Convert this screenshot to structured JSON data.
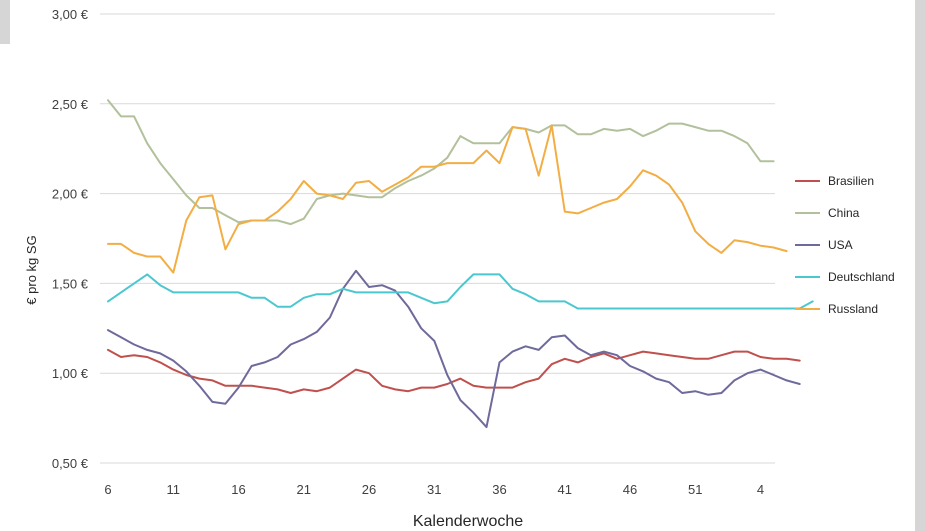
{
  "chart_data": {
    "type": "line",
    "title": "",
    "xlabel": "Kalenderwoche",
    "ylabel": "€ pro kg SG",
    "ylim": [
      0.5,
      3.0
    ],
    "yticks": [
      "0,50 €",
      "1,00 €",
      "1,50 €",
      "2,00 €",
      "2,50 €",
      "3,00 €"
    ],
    "xtick_labels": [
      "6",
      "11",
      "16",
      "21",
      "26",
      "31",
      "36",
      "41",
      "46",
      "51",
      "4"
    ],
    "grid": "horizontal",
    "legend_position": "right",
    "series": [
      {
        "name": "Brasilien",
        "color": "#c0504d",
        "values": [
          1.13,
          1.09,
          1.1,
          1.09,
          1.06,
          1.02,
          0.99,
          0.97,
          0.96,
          0.93,
          0.93,
          0.93,
          0.92,
          0.91,
          0.89,
          0.91,
          0.9,
          0.92,
          0.97,
          1.02,
          1.0,
          0.93,
          0.91,
          0.9,
          0.92,
          0.92,
          0.94,
          0.97,
          0.93,
          0.92,
          0.92,
          0.92,
          0.95,
          0.97,
          1.05,
          1.08,
          1.06,
          1.09,
          1.11,
          1.08,
          1.1,
          1.12,
          1.11,
          1.1,
          1.09,
          1.08,
          1.08,
          1.1,
          1.12,
          1.12,
          1.09,
          1.08,
          1.08,
          1.07
        ]
      },
      {
        "name": "China",
        "color": "#b2c19b",
        "values": [
          2.52,
          2.43,
          2.43,
          2.28,
          2.17,
          2.08,
          1.99,
          1.92,
          1.92,
          1.88,
          1.84,
          1.85,
          1.85,
          1.85,
          1.83,
          1.86,
          1.97,
          1.99,
          2.0,
          1.99,
          1.98,
          1.98,
          2.03,
          2.07,
          2.1,
          2.14,
          2.2,
          2.32,
          2.28,
          2.28,
          2.28,
          2.37,
          2.36,
          2.34,
          2.38,
          2.38,
          2.33,
          2.33,
          2.36,
          2.35,
          2.36,
          2.32,
          2.35,
          2.39,
          2.39,
          2.37,
          2.35,
          2.35,
          2.32,
          2.28,
          2.18,
          2.18
        ]
      },
      {
        "name": "USA",
        "color": "#6f6a9c",
        "values": [
          1.24,
          1.2,
          1.16,
          1.13,
          1.11,
          1.07,
          1.01,
          0.93,
          0.84,
          0.83,
          0.92,
          1.04,
          1.06,
          1.09,
          1.16,
          1.19,
          1.23,
          1.31,
          1.47,
          1.57,
          1.48,
          1.49,
          1.46,
          1.37,
          1.25,
          1.18,
          0.99,
          0.85,
          0.78,
          0.7,
          1.06,
          1.12,
          1.15,
          1.13,
          1.2,
          1.21,
          1.14,
          1.1,
          1.12,
          1.1,
          1.04,
          1.01,
          0.97,
          0.95,
          0.89,
          0.9,
          0.88,
          0.89,
          0.96,
          1.0,
          1.02,
          0.99,
          0.96,
          0.94
        ]
      },
      {
        "name": "Deutschland",
        "color": "#4bc8cf",
        "values": [
          1.4,
          1.45,
          1.5,
          1.55,
          1.49,
          1.45,
          1.45,
          1.45,
          1.45,
          1.45,
          1.45,
          1.42,
          1.42,
          1.37,
          1.37,
          1.42,
          1.44,
          1.44,
          1.47,
          1.45,
          1.45,
          1.45,
          1.45,
          1.45,
          1.42,
          1.39,
          1.4,
          1.48,
          1.55,
          1.55,
          1.55,
          1.47,
          1.44,
          1.4,
          1.4,
          1.4,
          1.36,
          1.36,
          1.36,
          1.36,
          1.36,
          1.36,
          1.36,
          1.36,
          1.36,
          1.36,
          1.36,
          1.36,
          1.36,
          1.36,
          1.36,
          1.36,
          1.36,
          1.36,
          1.4
        ]
      },
      {
        "name": "Russland",
        "color": "#f2ae45",
        "values": [
          1.72,
          1.72,
          1.67,
          1.65,
          1.65,
          1.56,
          1.85,
          1.98,
          1.99,
          1.69,
          1.83,
          1.85,
          1.85,
          1.9,
          1.97,
          2.07,
          2.0,
          1.99,
          1.97,
          2.06,
          2.07,
          2.01,
          2.05,
          2.09,
          2.15,
          2.15,
          2.17,
          2.17,
          2.17,
          2.24,
          2.17,
          2.37,
          2.36,
          2.1,
          2.38,
          1.9,
          1.89,
          1.92,
          1.95,
          1.97,
          2.04,
          2.13,
          2.1,
          2.05,
          1.95,
          1.79,
          1.72,
          1.67,
          1.74,
          1.73,
          1.71,
          1.7,
          1.68
        ]
      }
    ]
  }
}
